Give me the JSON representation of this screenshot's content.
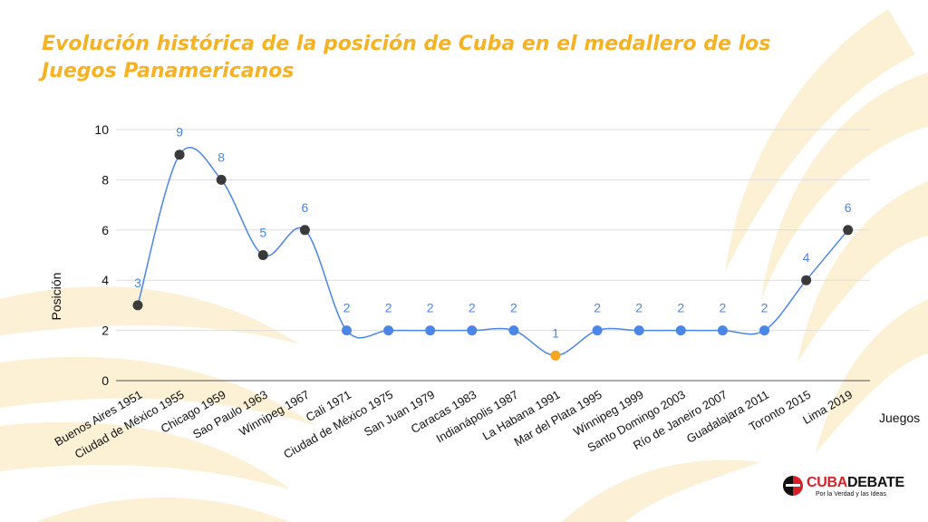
{
  "title": "Evolución histórica de la posición de Cuba en el medallero de los Juegos Panamericanos",
  "logo": {
    "part1": "CUBA",
    "part2": "DEBATE",
    "tagline": "Por la Verdad y las Ideas"
  },
  "colors": {
    "title": "#F5B324",
    "line": "#4A86E8",
    "dot_dark": "#3a3a3a",
    "dot_blue": "#4A86E8",
    "dot_orange": "#F5A623",
    "grid": "#dddddd",
    "background_swirl": "#FBEBC8"
  },
  "chart_data": {
    "type": "line",
    "title": "Evolución histórica de la posición de Cuba en el medallero de los Juegos Panamericanos",
    "xlabel": "Juegos",
    "ylabel": "Posición",
    "ylim": [
      0,
      10
    ],
    "yticks": [
      0,
      2,
      4,
      6,
      8,
      10
    ],
    "grid": true,
    "smooth": true,
    "categories": [
      "Buenos Aires 1951",
      "Ciudad de México 1955",
      "Chicago 1959",
      "Sao Paulo 1963",
      "Winnipeg 1967",
      "Cali 1971",
      "Ciudad de México 1975",
      "San Juan 1979",
      "Caracas 1983",
      "Indianápolis 1987",
      "La Habana 1991",
      "Mar del Plata 1995",
      "Winnipeg 1999",
      "Santo Domingo 2003",
      "Río de Janeiro 2007",
      "Guadalajara 2011",
      "Toronto 2015",
      "Lima 2019"
    ],
    "series": [
      {
        "values": [
          3,
          9,
          8,
          5,
          6,
          2,
          2,
          2,
          2,
          2,
          1,
          2,
          2,
          2,
          2,
          2,
          4,
          6
        ],
        "data_labels": [
          "3",
          "9",
          "8",
          "5",
          "6",
          "2",
          "2",
          "2",
          "2",
          "2",
          "1",
          "2",
          "2",
          "2",
          "2",
          "2",
          "4",
          "6"
        ],
        "point_colors": [
          "dark",
          "dark",
          "dark",
          "dark",
          "dark",
          "blue",
          "blue",
          "blue",
          "blue",
          "blue",
          "orange",
          "blue",
          "blue",
          "blue",
          "blue",
          "blue",
          "dark",
          "dark"
        ]
      }
    ]
  }
}
